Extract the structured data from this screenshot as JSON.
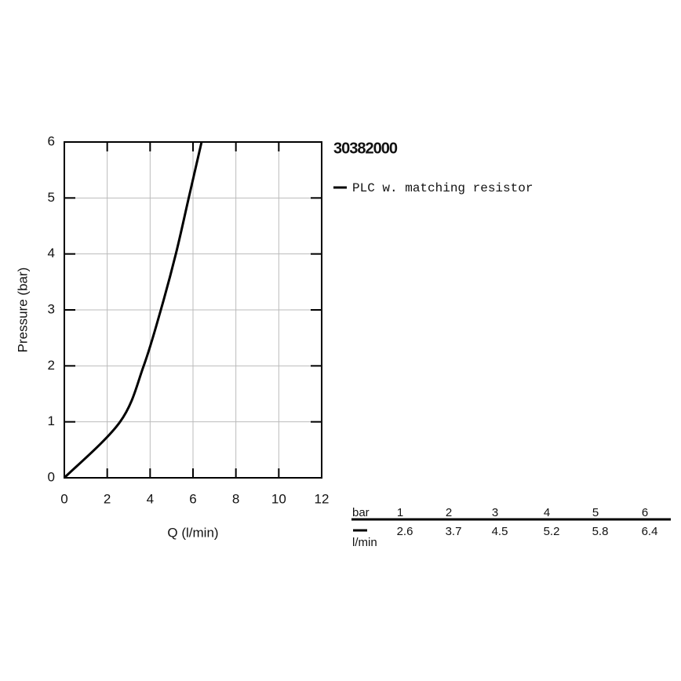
{
  "chart_data": {
    "type": "line",
    "title": "30382000",
    "xlabel": "Q (l/min)",
    "ylabel": "Pressure (bar)",
    "xlim": [
      0,
      12
    ],
    "ylim": [
      0,
      6
    ],
    "xticks": [
      0,
      2,
      4,
      6,
      8,
      10,
      12
    ],
    "yticks": [
      0,
      1,
      2,
      3,
      4,
      5,
      6
    ],
    "grid": true,
    "series": [
      {
        "name": "PLC w. matching resistor",
        "color": "#000000",
        "x": [
          0,
          2.6,
          3.7,
          4.5,
          5.2,
          5.8,
          6.4
        ],
        "y": [
          0,
          1,
          2,
          3,
          4,
          5,
          6
        ]
      }
    ],
    "table_labels": [
      "bar",
      "l/min"
    ]
  }
}
